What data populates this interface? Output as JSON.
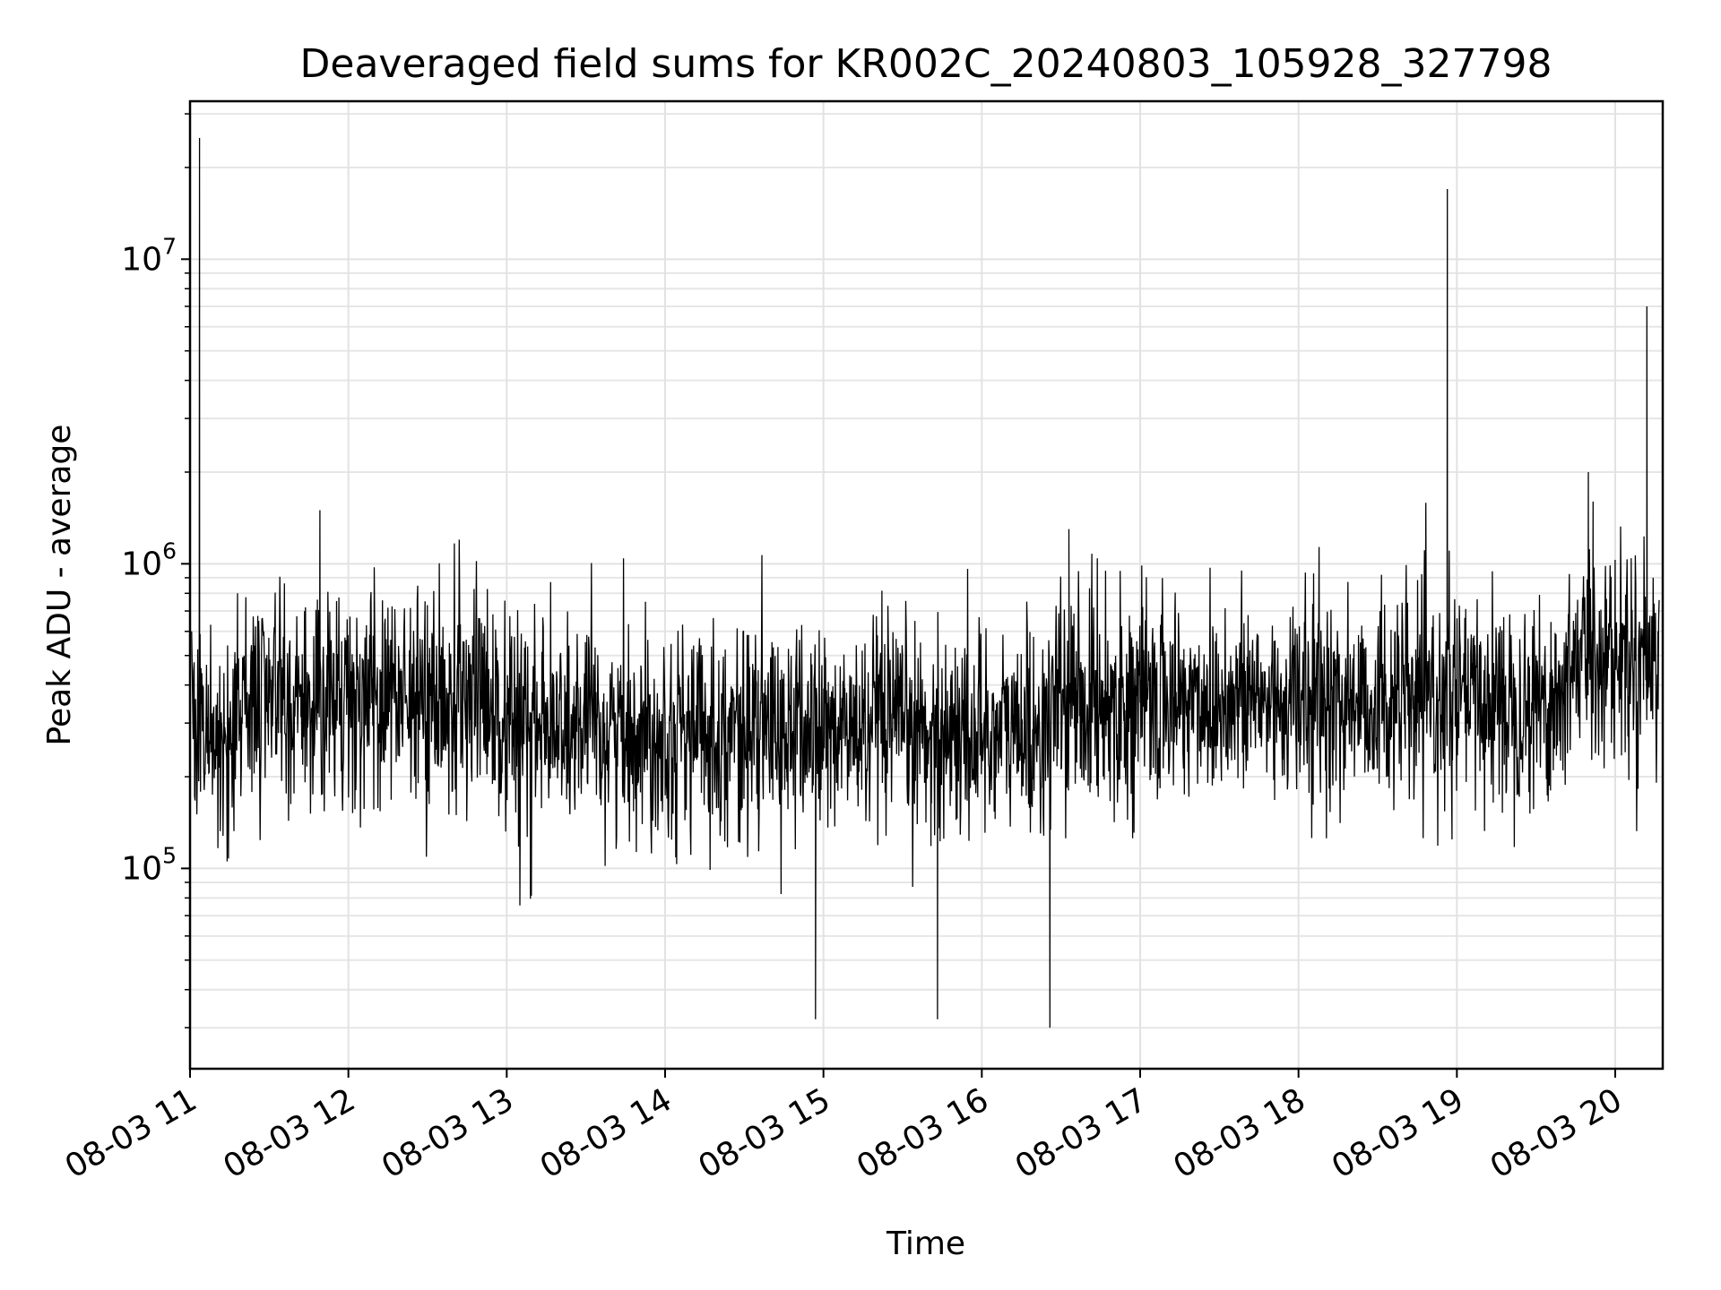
{
  "chart_data": {
    "type": "line",
    "title": "Deaveraged field sums for KR002C_20240803_105928_327798",
    "xlabel": "Time",
    "ylabel": "Peak ADU - average",
    "x_ticks": [
      "08-03 11",
      "08-03 12",
      "08-03 13",
      "08-03 14",
      "08-03 15",
      "08-03 16",
      "08-03 17",
      "08-03 18",
      "08-03 19",
      "08-03 20"
    ],
    "x_tick_hours": [
      11,
      12,
      13,
      14,
      15,
      16,
      17,
      18,
      19,
      20
    ],
    "xlim_hours": [
      11.0,
      20.3
    ],
    "y_scale": "log",
    "ylim": [
      22000,
      33000000
    ],
    "y_ticks": [
      {
        "base": "10",
        "exp": "5",
        "value": 100000
      },
      {
        "base": "10",
        "exp": "6",
        "value": 1000000
      },
      {
        "base": "10",
        "exp": "7",
        "value": 10000000
      }
    ],
    "grid": true,
    "line_color": "#000000",
    "series": [
      {
        "x_hours": [
          11.01,
          11.06,
          11.08,
          11.2,
          11.3,
          11.35,
          11.5,
          11.7,
          11.82,
          11.92,
          12.0,
          12.2,
          12.3,
          12.5,
          12.7,
          12.85,
          13.0,
          13.15,
          13.2,
          13.5,
          13.65,
          13.8,
          14.0,
          14.3,
          14.5,
          14.7,
          14.95,
          15.0,
          15.2,
          15.5,
          15.68,
          15.72,
          15.9,
          16.0,
          16.15,
          16.3,
          16.43,
          16.5,
          16.55,
          16.7,
          16.9,
          17.0,
          17.15,
          17.3,
          17.55,
          17.7,
          17.9,
          18.0,
          18.25,
          18.4,
          18.62,
          18.75,
          18.9,
          18.94,
          18.97,
          19.1,
          19.3,
          19.5,
          19.6,
          19.75,
          19.83,
          19.86,
          19.9,
          20.0,
          20.1,
          20.18,
          20.2,
          20.27
        ],
        "y": [
          600000,
          25000000,
          400000,
          300000,
          800000,
          400000,
          350000,
          400000,
          1500000,
          350000,
          400000,
          450000,
          350000,
          300000,
          1200000,
          300000,
          350000,
          300000,
          300000,
          350000,
          300000,
          280000,
          300000,
          350000,
          280000,
          260000,
          32000,
          250000,
          280000,
          260000,
          250000,
          32000,
          280000,
          300000,
          300000,
          350000,
          30000,
          450000,
          1300000,
          400000,
          350000,
          350000,
          400000,
          350000,
          400000,
          400000,
          350000,
          420000,
          350000,
          320000,
          300000,
          300000,
          320000,
          17000000,
          380000,
          400000,
          400000,
          500000,
          450000,
          600000,
          2000000,
          1600000,
          700000,
          600000,
          550000,
          500000,
          7000000,
          600000
        ]
      }
    ]
  }
}
